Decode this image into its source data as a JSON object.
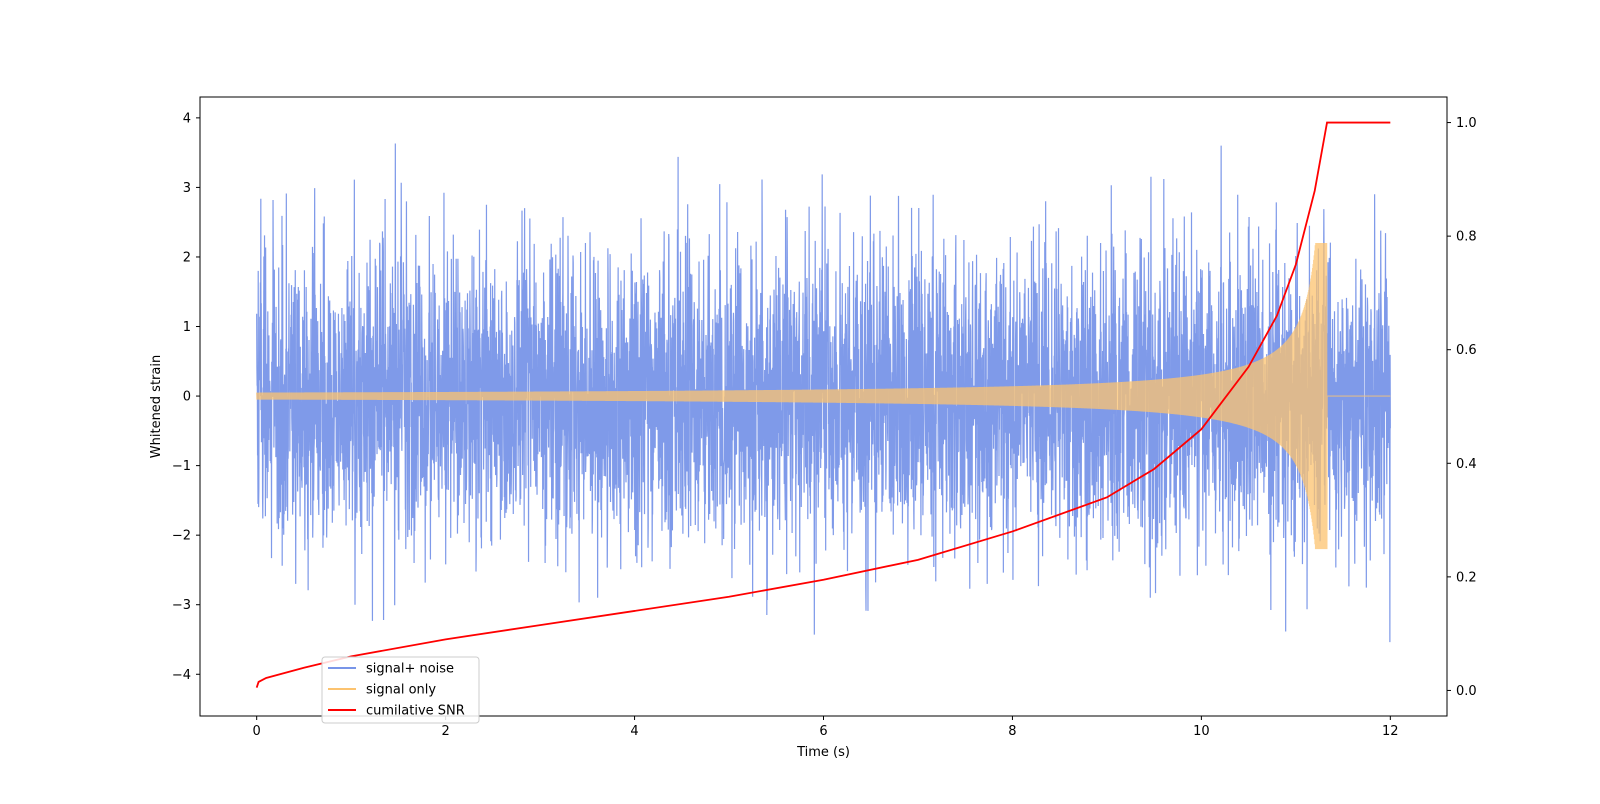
{
  "chart_data": {
    "type": "line",
    "xlabel": "Time (s)",
    "ylabel_left": "Whitened strain",
    "ylabel_right": "",
    "xlim": [
      -0.6,
      12.6
    ],
    "ylim_left": [
      -4.6,
      4.3
    ],
    "ylim_right": [
      -0.045,
      1.045
    ],
    "xticks": [
      0,
      2,
      4,
      6,
      8,
      10,
      12
    ],
    "yticks_left": [
      -4,
      -3,
      -2,
      -1,
      0,
      1,
      2,
      3,
      4
    ],
    "yticks_right": [
      0.0,
      0.2,
      0.4,
      0.6,
      0.8,
      1.0
    ],
    "grid": false,
    "legend_position": "lower-left",
    "series": [
      {
        "name": "signal+ noise",
        "color": "#7895e8",
        "axis": "left",
        "description_shape": "dense noise approx N(0,1) with peaks near ±3.9 over 0–12 s",
        "x_range": [
          0,
          12
        ]
      },
      {
        "name": "signal only",
        "color": "#fcc36f",
        "axis": "left",
        "description_shape": "chirp with amplitude ~0.05 growing to ~2.2 at merger 11.33 s then ~0",
        "x_range": [
          0,
          12
        ],
        "merger_time": 11.33,
        "peak_amplitude": 2.2
      },
      {
        "name": "cumilative SNR",
        "color": "#ff0000",
        "axis": "right",
        "x": [
          0,
          0.02,
          0.1,
          0.5,
          1,
          2,
          3,
          4,
          5,
          6,
          7,
          8,
          9,
          9.5,
          10,
          10.5,
          10.8,
          11.0,
          11.2,
          11.33,
          12
        ],
        "y": [
          0.005,
          0.015,
          0.022,
          0.04,
          0.06,
          0.09,
          0.115,
          0.14,
          0.165,
          0.195,
          0.23,
          0.28,
          0.34,
          0.39,
          0.46,
          0.57,
          0.66,
          0.75,
          0.88,
          1.0,
          1.0
        ]
      }
    ]
  }
}
